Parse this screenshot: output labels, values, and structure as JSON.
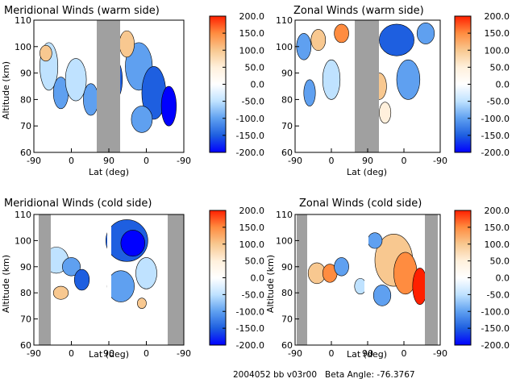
{
  "footer": "2004052 bb v03r00   Beta Angle: -76.3767",
  "colorbar": {
    "ticks": [
      "200.0",
      "150.0",
      "100.0",
      "50.0",
      "0.0",
      "-50.0",
      "-100.0",
      "-150.0",
      "-200.0"
    ],
    "range": [
      -200,
      200
    ],
    "colors": [
      "#0000ff",
      "#1e5fe0",
      "#5fa0f0",
      "#bfe2ff",
      "#ffffff",
      "#fff0dc",
      "#f8c890",
      "#ff8c40",
      "#ff2000"
    ]
  },
  "chart_data": [
    {
      "type": "heatmap",
      "title": "Meridional Winds (warm side)",
      "xlabel": "Lat (deg)",
      "ylabel": "Altitude (km)",
      "x_ticks": [
        "-90",
        "0",
        "90",
        "0",
        "-90"
      ],
      "y_ticks": [
        "110",
        "100",
        "90",
        "80",
        "70",
        "60"
      ],
      "ylim": [
        60,
        110
      ],
      "blank_bands": [
        "90 ascending to 90 descending"
      ]
    },
    {
      "type": "heatmap",
      "title": "Zonal Winds (warm side)",
      "xlabel": "Lat (deg)",
      "ylabel": "",
      "x_ticks": [
        "-90",
        "0",
        "90",
        "0",
        "-90"
      ],
      "y_ticks": [
        "110",
        "100",
        "90",
        "80",
        "70",
        "60"
      ],
      "ylim": [
        60,
        110
      ],
      "blank_bands": [
        "90 ascending to 90 descending"
      ]
    },
    {
      "type": "heatmap",
      "title": "Meridional Winds (cold side)",
      "xlabel": "Lat (deg)",
      "ylabel": "Altitude (km)",
      "x_ticks": [
        "-90",
        "0",
        "90",
        "0",
        "-90"
      ],
      "y_ticks": [
        "110",
        "100",
        "90",
        "80",
        "70",
        "60"
      ],
      "ylim": [
        60,
        110
      ],
      "blank_bands": [
        "-90 to -70",
        "-70 to -90 descending end"
      ]
    },
    {
      "type": "heatmap",
      "title": "Zonal Winds (cold side)",
      "xlabel": "Lat (deg)",
      "ylabel": "Altitude (km)",
      "x_ticks": [
        "-90",
        "0",
        "90",
        "0",
        "-90"
      ],
      "y_ticks": [
        "110",
        "100",
        "90",
        "80",
        "70",
        "60"
      ],
      "ylim": [
        60,
        110
      ],
      "blank_bands": [
        "-90 to -70",
        "-70 to -90 descending end"
      ]
    }
  ]
}
